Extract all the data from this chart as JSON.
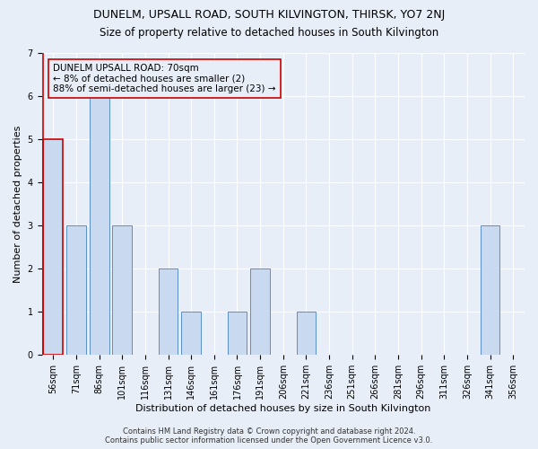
{
  "title1": "DUNELM, UPSALL ROAD, SOUTH KILVINGTON, THIRSK, YO7 2NJ",
  "title2": "Size of property relative to detached houses in South Kilvington",
  "xlabel": "Distribution of detached houses by size in South Kilvington",
  "ylabel": "Number of detached properties",
  "categories": [
    "56sqm",
    "71sqm",
    "86sqm",
    "101sqm",
    "116sqm",
    "131sqm",
    "146sqm",
    "161sqm",
    "176sqm",
    "191sqm",
    "206sqm",
    "221sqm",
    "236sqm",
    "251sqm",
    "266sqm",
    "281sqm",
    "296sqm",
    "311sqm",
    "326sqm",
    "341sqm",
    "356sqm"
  ],
  "values": [
    5,
    3,
    6,
    3,
    0,
    2,
    1,
    0,
    1,
    2,
    0,
    1,
    0,
    0,
    0,
    0,
    0,
    0,
    0,
    3,
    0
  ],
  "highlight_index": 0,
  "bar_color": "#c9d9ef",
  "bar_edge_color": "#5b8fc9",
  "highlight_bar_edge_color": "#cc0000",
  "annotation_box_edge_color": "#cc0000",
  "annotation_text": "DUNELM UPSALL ROAD: 70sqm\n← 8% of detached houses are smaller (2)\n88% of semi-detached houses are larger (23) →",
  "footnote": "Contains HM Land Registry data © Crown copyright and database right 2024.\nContains public sector information licensed under the Open Government Licence v3.0.",
  "ylim": [
    0,
    7
  ],
  "yticks": [
    0,
    1,
    2,
    3,
    4,
    5,
    6,
    7
  ],
  "background_color": "#e8eef8",
  "grid_color": "#ffffff",
  "title1_fontsize": 9,
  "title2_fontsize": 8.5,
  "xlabel_fontsize": 8,
  "ylabel_fontsize": 8,
  "annotation_fontsize": 7.5,
  "tick_fontsize": 7,
  "footnote_fontsize": 6
}
